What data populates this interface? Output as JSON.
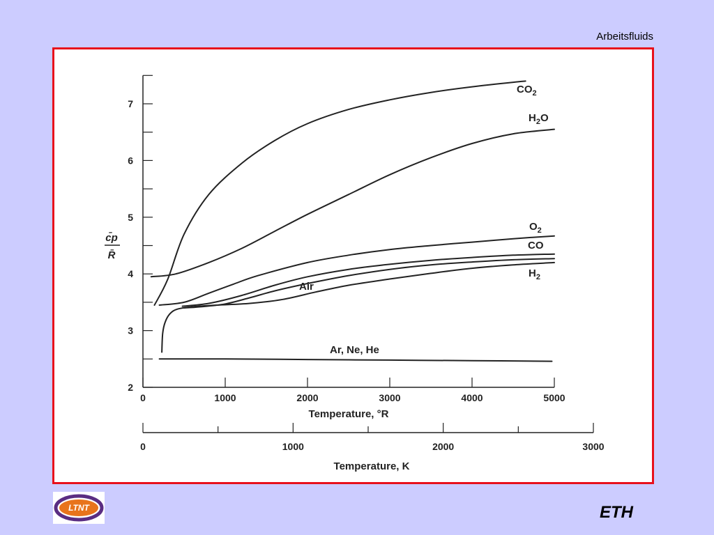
{
  "slide": {
    "title": "Arbeitsfluids",
    "logo_left_text": "LTNT",
    "logo_right_text": "ETH"
  },
  "colors": {
    "background": "#ccccff",
    "frame_border": "#e8101c",
    "ink": "#222222",
    "ltnt_purple": "#5a2d82",
    "ltnt_orange": "#e8741c"
  },
  "chart_data": {
    "type": "line",
    "xlabel": "Temperature, °R",
    "xlabel_secondary": "Temperature, K",
    "ylabel_numerator": "c̄p",
    "ylabel_denominator": "R̄",
    "xlim": [
      0,
      5000
    ],
    "ylim": [
      2,
      7.5
    ],
    "xlim_secondary": [
      0,
      3000
    ],
    "x_ticks": [
      0,
      1000,
      2000,
      3000,
      4000,
      5000
    ],
    "y_ticks": [
      2,
      3,
      4,
      5,
      6,
      7
    ],
    "x_ticks_secondary": [
      0,
      1000,
      2000,
      3000
    ],
    "grid": false,
    "legend": "inline labels at line ends",
    "series": [
      {
        "name": "CO2",
        "label_main": "CO",
        "label_sub": "2",
        "x": [
          140,
          300,
          500,
          800,
          1200,
          1600,
          2000,
          2500,
          3000,
          3500,
          4000,
          4500,
          4650
        ],
        "y": [
          3.45,
          3.9,
          4.7,
          5.4,
          5.95,
          6.35,
          6.65,
          6.9,
          7.07,
          7.2,
          7.3,
          7.38,
          7.4
        ]
      },
      {
        "name": "H2O",
        "label_main": "H",
        "label_sub": "2",
        "label_rest": "O",
        "x": [
          100,
          400,
          800,
          1200,
          1600,
          2000,
          2500,
          3000,
          3500,
          4000,
          4500,
          5000
        ],
        "y": [
          3.95,
          4.0,
          4.2,
          4.45,
          4.75,
          5.05,
          5.4,
          5.75,
          6.05,
          6.3,
          6.47,
          6.55
        ]
      },
      {
        "name": "O2",
        "label_main": "O",
        "label_sub": "2",
        "x": [
          200,
          500,
          800,
          1100,
          1400,
          2000,
          2500,
          3000,
          3500,
          4000,
          4500,
          5000
        ],
        "y": [
          3.45,
          3.5,
          3.66,
          3.82,
          3.97,
          4.2,
          4.33,
          4.43,
          4.5,
          4.56,
          4.62,
          4.67
        ]
      },
      {
        "name": "CO",
        "label_main": "CO",
        "x": [
          480,
          800,
          1200,
          1600,
          2000,
          2500,
          3000,
          3500,
          4000,
          4500,
          5000
        ],
        "y": [
          3.43,
          3.48,
          3.62,
          3.8,
          3.95,
          4.08,
          4.17,
          4.24,
          4.29,
          4.33,
          4.35
        ]
      },
      {
        "name": "Air",
        "label_main": "Air",
        "x": [
          500,
          700,
          1000,
          1300,
          1600,
          2000,
          2500,
          3000,
          3500,
          4000,
          4500,
          5000
        ],
        "y": [
          3.4,
          3.42,
          3.47,
          3.58,
          3.7,
          3.83,
          3.97,
          4.08,
          4.16,
          4.21,
          4.25,
          4.27
        ]
      },
      {
        "name": "H2",
        "label_main": "H",
        "label_sub": "2",
        "x": [
          230,
          240,
          270,
          330,
          420,
          600,
          900,
          1300,
          1700,
          2100,
          2500,
          3000,
          3500,
          4000,
          4500,
          5000
        ],
        "y": [
          2.62,
          2.95,
          3.15,
          3.3,
          3.38,
          3.42,
          3.45,
          3.48,
          3.55,
          3.68,
          3.8,
          3.91,
          4.01,
          4.1,
          4.16,
          4.2
        ]
      },
      {
        "name": "Ar, Ne, He",
        "label_main": "Ar, Ne, He",
        "x": [
          200,
          1000,
          2000,
          3000,
          4000,
          4970
        ],
        "y": [
          2.5,
          2.5,
          2.49,
          2.48,
          2.47,
          2.46
        ]
      }
    ]
  }
}
